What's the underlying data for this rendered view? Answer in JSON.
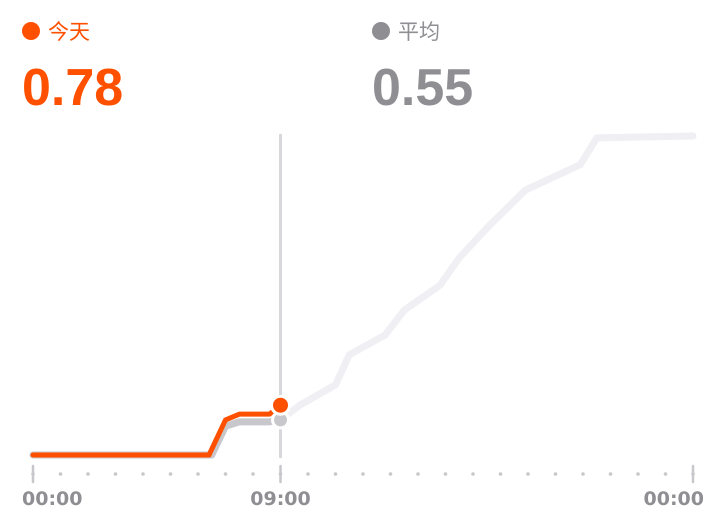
{
  "chart_data": {
    "type": "line",
    "series": [
      {
        "name": "今天",
        "color": "#ff5000",
        "total": 0.78,
        "x": [
          0,
          6.4,
          7.0,
          7.5,
          8.6,
          9
        ],
        "values": [
          0,
          0,
          0.55,
          0.64,
          0.64,
          0.78
        ]
      },
      {
        "name": "平均",
        "color": "#8e8e93",
        "total": 0.55,
        "x": [
          0,
          6.5,
          7.0,
          7.5,
          8.6,
          9,
          9.7,
          11,
          11.5,
          12.8,
          13.5,
          14.8,
          15.5,
          16.6,
          17.9,
          19.9,
          20.5,
          24
        ],
        "values": [
          0,
          0,
          0.45,
          0.52,
          0.52,
          0.55,
          0.78,
          1.1,
          1.57,
          1.88,
          2.27,
          2.66,
          3.09,
          3.6,
          4.15,
          4.55,
          4.97,
          5.0
        ]
      }
    ],
    "xlim": [
      0,
      24
    ],
    "xticks": [
      {
        "value": 0,
        "label": "00:00"
      },
      {
        "value": 9,
        "label": "09:00"
      },
      {
        "value": 24,
        "label": "00:00"
      }
    ],
    "ylim": [
      0,
      5.0
    ]
  }
}
